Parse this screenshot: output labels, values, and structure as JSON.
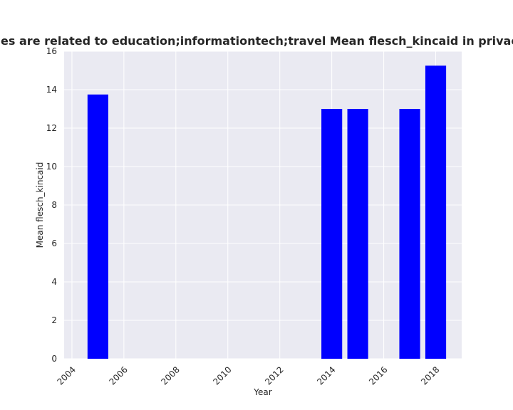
{
  "chart_data": {
    "type": "bar",
    "title": "ategories are related to education;informationtech;travel Mean flesch_kincaid in privacy policie",
    "xlabel": "Year",
    "ylabel": "Mean flesch_kincaid",
    "x": [
      2005,
      2014,
      2015,
      2017,
      2018
    ],
    "values": [
      13.75,
      13.0,
      13.0,
      13.0,
      15.25
    ],
    "xlim": [
      2003.7,
      2019.0
    ],
    "ylim": [
      0,
      16
    ],
    "xticks": [
      2004,
      2006,
      2008,
      2010,
      2012,
      2014,
      2016,
      2018
    ],
    "yticks": [
      0,
      2,
      4,
      6,
      8,
      10,
      12,
      14,
      16
    ],
    "grid": true,
    "bar_color": "#0000ff",
    "plot_background": "#eaeaf2",
    "grid_color": "#ffffff"
  }
}
